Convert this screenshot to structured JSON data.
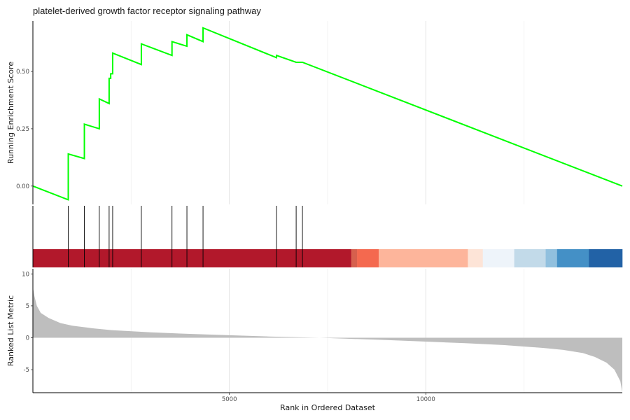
{
  "chart_data": {
    "type": "line",
    "title": "platelet-derived growth factor receptor signaling pathway",
    "n_genes": 15000,
    "xlabel": "Rank in Ordered Dataset",
    "x_ticks": [
      5000,
      10000
    ],
    "xlim": [
      0,
      15000
    ],
    "grid": "vertical major and minor lines on top and bottom panels",
    "panels": [
      {
        "name": "running-enrichment",
        "ylabel": "Running Enrichment Score",
        "ylim": [
          -0.08,
          0.72
        ],
        "y_ticks": [
          0.0,
          0.25,
          0.5
        ],
        "y_tick_labels": [
          "0.00",
          "0.25",
          "0.50"
        ],
        "line_color": "#00ff00",
        "series": [
          {
            "x": [
              0,
              900,
              900,
              1310,
              1310,
              1690,
              1690,
              1940,
              1940,
              1980,
              1980,
              2030,
              2030,
              2760,
              2760,
              3540,
              3540,
              3920,
              3920,
              4330,
              4330,
              6200,
              6200,
              6700,
              6700,
              6780,
              6780,
              6860,
              6860,
              15000
            ],
            "y": [
              0.0,
              -0.06,
              0.14,
              0.12,
              0.27,
              0.25,
              0.38,
              0.36,
              0.47,
              0.47,
              0.49,
              0.49,
              0.58,
              0.53,
              0.62,
              0.57,
              0.63,
              0.61,
              0.66,
              0.63,
              0.69,
              0.56,
              0.57,
              0.54,
              0.54,
              0.54,
              0.54,
              0.54,
              0.54,
              0.0
            ]
          }
        ]
      },
      {
        "name": "gene-hits",
        "hit_positions": [
          900,
          1310,
          1690,
          1940,
          2030,
          2760,
          3540,
          3920,
          4330,
          6200,
          6700,
          6860
        ],
        "color_bar": [
          {
            "start": 0,
            "end": 8100,
            "color": "#b2182b"
          },
          {
            "start": 8100,
            "end": 8250,
            "color": "#d6604d"
          },
          {
            "start": 8250,
            "end": 8800,
            "color": "#f4694f"
          },
          {
            "start": 8800,
            "end": 11070,
            "color": "#fdb59b"
          },
          {
            "start": 11070,
            "end": 11450,
            "color": "#fde4d7"
          },
          {
            "start": 11450,
            "end": 12250,
            "color": "#eef4fa"
          },
          {
            "start": 12250,
            "end": 13050,
            "color": "#c2dae9"
          },
          {
            "start": 13050,
            "end": 13340,
            "color": "#91c0de"
          },
          {
            "start": 13340,
            "end": 14150,
            "color": "#4490c6"
          },
          {
            "start": 14150,
            "end": 15000,
            "color": "#2262a6"
          }
        ]
      },
      {
        "name": "ranked-list",
        "type": "area",
        "ylabel": "Ranked List Metric",
        "ylim": [
          -8.6,
          10.8
        ],
        "y_ticks": [
          -5,
          0,
          5,
          10
        ],
        "fill_color": "#bebebe",
        "x": [
          0,
          40,
          100,
          200,
          400,
          700,
          1000,
          1500,
          2000,
          3000,
          4000,
          5000,
          6000,
          7000,
          7300,
          8000,
          9000,
          10000,
          11000,
          12000,
          13000,
          13500,
          14000,
          14300,
          14600,
          14800,
          14950,
          15000
        ],
        "values": [
          7.9,
          6.5,
          5.0,
          3.9,
          3.1,
          2.3,
          1.9,
          1.5,
          1.2,
          0.85,
          0.6,
          0.4,
          0.2,
          0.05,
          0.0,
          -0.15,
          -0.35,
          -0.6,
          -0.85,
          -1.15,
          -1.6,
          -1.9,
          -2.4,
          -3.0,
          -3.9,
          -5.0,
          -6.8,
          -8.5
        ]
      }
    ]
  }
}
